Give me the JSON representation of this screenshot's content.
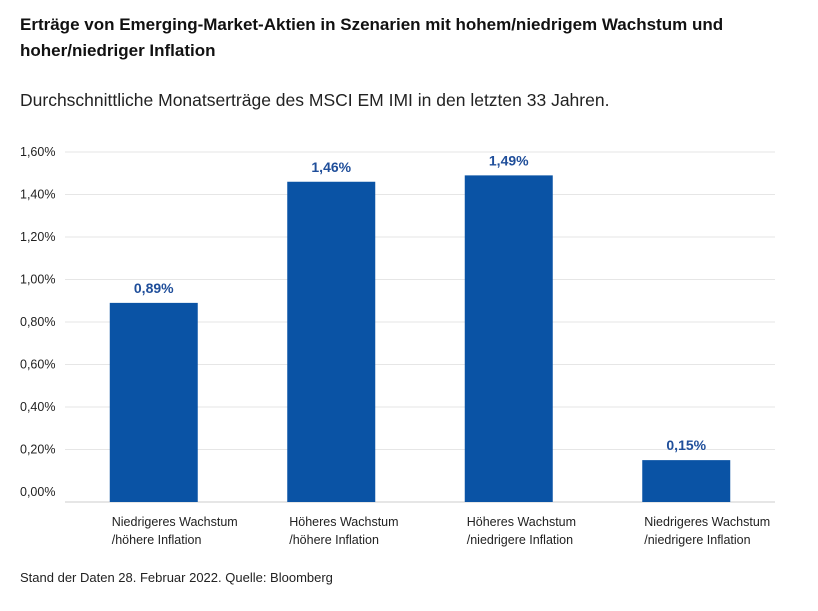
{
  "title": "Erträge von Emerging-Market-Aktien in Szenarien mit hohem/niedrigem Wachstum und hoher/niedriger Inflation",
  "subtitle": "Durchschnittliche Monatserträge des MSCI EM IMI in den letzten 33 Jahren.",
  "source": "Stand der Daten 28. Februar 2022. Quelle: Bloomberg",
  "colors": {
    "bar": "#0a53a5",
    "label": "#1f4e9a",
    "grid": "#e6e6e6",
    "axis": "#cccccc"
  },
  "chart_data": {
    "type": "bar",
    "categories": [
      [
        "Niedrigeres Wachstum",
        "/höhere Inflation"
      ],
      [
        "Höheres Wachstum",
        "/höhere Inflation"
      ],
      [
        "Höheres Wachstum",
        "/niedrigere Inflation"
      ],
      [
        "Niedrigeres Wachstum",
        "/niedrigere Inflation"
      ]
    ],
    "values": [
      0.89,
      1.46,
      1.49,
      0.15
    ],
    "value_labels": [
      "0,89%",
      "1,46%",
      "1,49%",
      "0,15%"
    ],
    "yticks": [
      0.0,
      0.2,
      0.4,
      0.6,
      0.8,
      1.0,
      1.2,
      1.4,
      1.6
    ],
    "ytick_labels": [
      "0,00%",
      "0,20%",
      "0,40%",
      "0,60%",
      "0,80%",
      "1,00%",
      "1,20%",
      "1,40%",
      "1,60%"
    ],
    "ylim": [
      0,
      1.6
    ],
    "grid": true
  }
}
